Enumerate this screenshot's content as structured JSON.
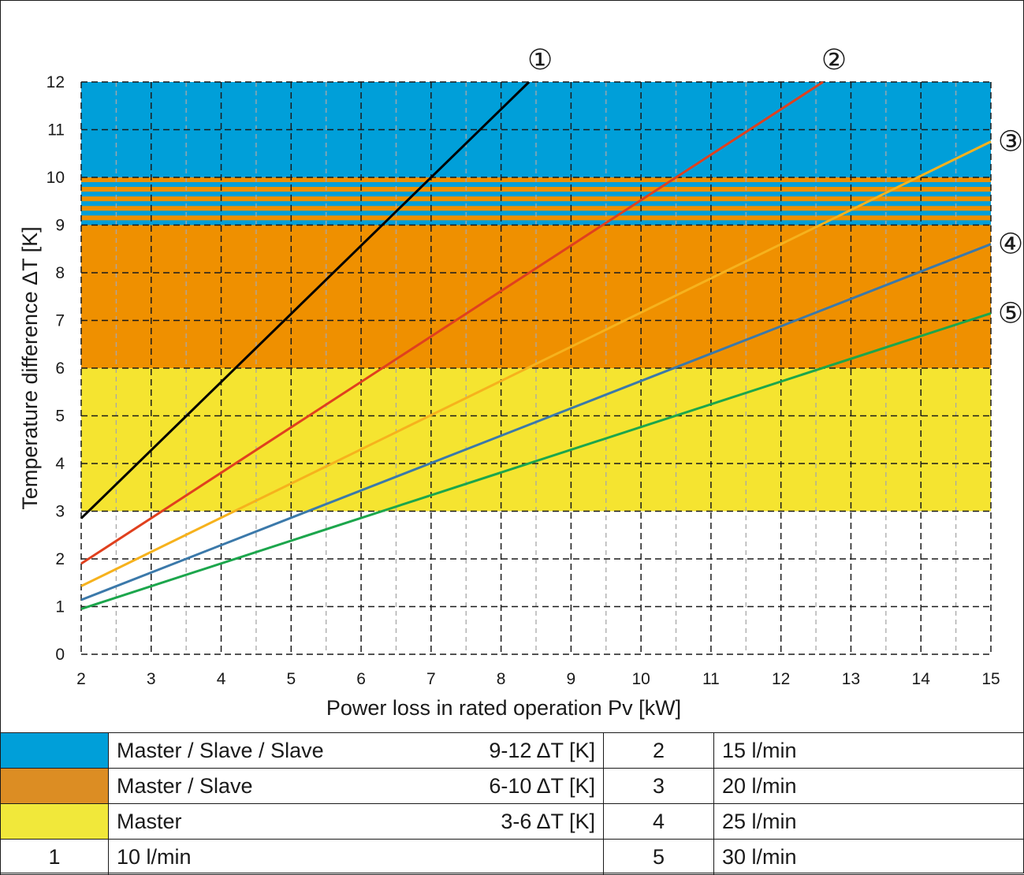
{
  "chart_data": {
    "type": "line",
    "xlabel": "Power loss in rated operation Pv [kW]",
    "ylabel": "Temperature difference ΔT [K]",
    "xlim": [
      2,
      15
    ],
    "ylim": [
      0,
      12
    ],
    "x_ticks": [
      "2",
      "3",
      "4",
      "5",
      "6",
      "7",
      "8",
      "9",
      "10",
      "11",
      "12",
      "13",
      "14",
      "15"
    ],
    "y_ticks": [
      "0",
      "1",
      "2",
      "3",
      "4",
      "5",
      "6",
      "7",
      "8",
      "9",
      "10",
      "11",
      "12"
    ],
    "grid": "dashed, major every 1 kW / 1 K, minor every 0.5 kW",
    "bands": [
      {
        "from": 10,
        "to": 12,
        "color": "#009fd9",
        "group": "Master / Slave / Slave"
      },
      {
        "from": 9,
        "to": 10,
        "color": "striped #009fd9 / #ef9000",
        "group": "overlap"
      },
      {
        "from": 6,
        "to": 9,
        "color": "#ef9000",
        "group": "Master / Slave"
      },
      {
        "from": 3,
        "to": 6,
        "color": "#f5e430",
        "group": "Master"
      }
    ],
    "series": [
      {
        "name": "1",
        "color": "#000000",
        "x": [
          2,
          8.4
        ],
        "y": [
          2.85,
          12
        ]
      },
      {
        "name": "2",
        "color": "#e0401e",
        "x": [
          2,
          12.6
        ],
        "y": [
          1.9,
          12
        ]
      },
      {
        "name": "3",
        "color": "#f6b21d",
        "x": [
          2,
          15
        ],
        "y": [
          1.43,
          10.75
        ]
      },
      {
        "name": "4",
        "color": "#3b79aa",
        "x": [
          2,
          15
        ],
        "y": [
          1.14,
          8.6
        ]
      },
      {
        "name": "5",
        "color": "#1ca64c",
        "x": [
          2,
          15
        ],
        "y": [
          0.95,
          7.15
        ]
      }
    ],
    "markers": [
      "①",
      "②",
      "③",
      "④",
      "⑤"
    ]
  },
  "legend_table": {
    "rows": [
      {
        "swatch": "#009fd9",
        "label": "Master / Slave / Slave",
        "range": "9-12 ΔT [K]",
        "num": "2",
        "flow": "15 l/min"
      },
      {
        "swatch": "#dc8d23",
        "label": "Master / Slave",
        "range": "6-10 ΔT [K]",
        "num": "3",
        "flow": "20 l/min"
      },
      {
        "swatch": "#f1e83a",
        "label": "Master",
        "range": "3-6 ΔT [K]",
        "num": "4",
        "flow": "25 l/min"
      }
    ],
    "last_row": {
      "num1": "1",
      "flow1": "10 l/min",
      "num2": "5",
      "flow2": "30 l/min"
    }
  }
}
